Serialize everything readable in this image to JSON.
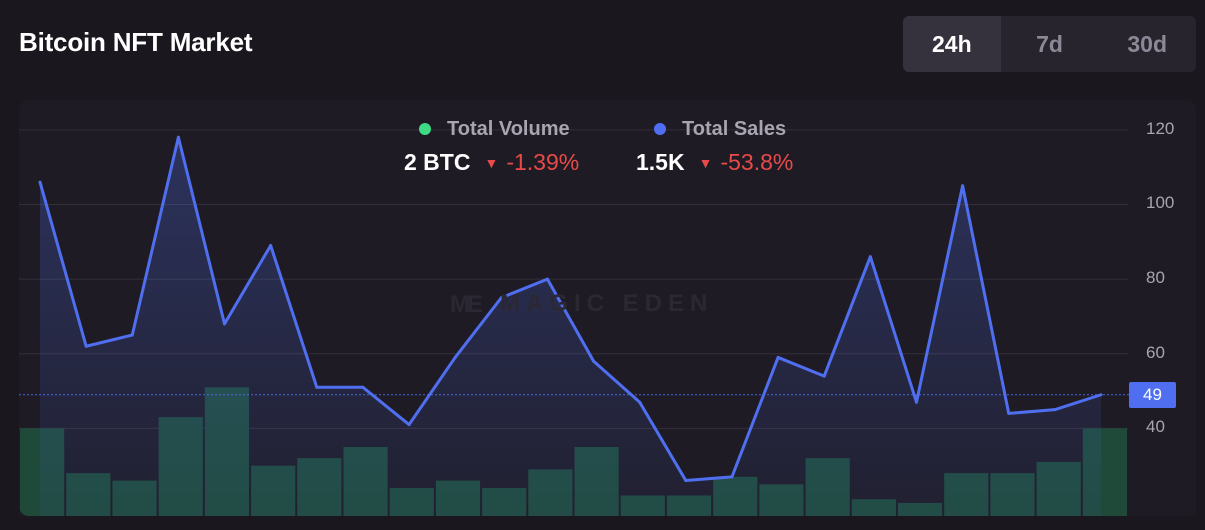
{
  "header": {
    "title": "Bitcoin NFT Market"
  },
  "tabs": [
    {
      "label": "24h",
      "active": true
    },
    {
      "label": "7d",
      "active": false
    },
    {
      "label": "30d",
      "active": false
    }
  ],
  "legend": {
    "volume": {
      "label": "Total Volume",
      "color": "#3ddc84",
      "value": "2 BTC",
      "change": "-1.39%"
    },
    "sales": {
      "label": "Total Sales",
      "color": "#4f6ff0",
      "value": "1.5K",
      "change": "-53.8%"
    }
  },
  "watermark": {
    "text": "MAGIC EDEN"
  },
  "price_tag": "49",
  "chart_data": {
    "type": "line",
    "yticks": [
      120,
      100,
      80,
      60,
      40
    ],
    "ylim": [
      16.5,
      128
    ],
    "last_value": 49,
    "series": [
      {
        "name": "Total Sales",
        "type": "line",
        "color": "#4f6ff0",
        "values": [
          106,
          62,
          65,
          118,
          68,
          89,
          51,
          51,
          41,
          59,
          75,
          80,
          58,
          47,
          26,
          27,
          59,
          54,
          86,
          47,
          105,
          44,
          45,
          49
        ]
      },
      {
        "name": "Total Volume",
        "type": "bar",
        "color": "#1f4a3a",
        "values": [
          40,
          28,
          26,
          43,
          51,
          30,
          32,
          35,
          24,
          26,
          24,
          29,
          35,
          22,
          22,
          27,
          25,
          32,
          21,
          20,
          28,
          28,
          31,
          40
        ]
      }
    ],
    "grid": true
  }
}
